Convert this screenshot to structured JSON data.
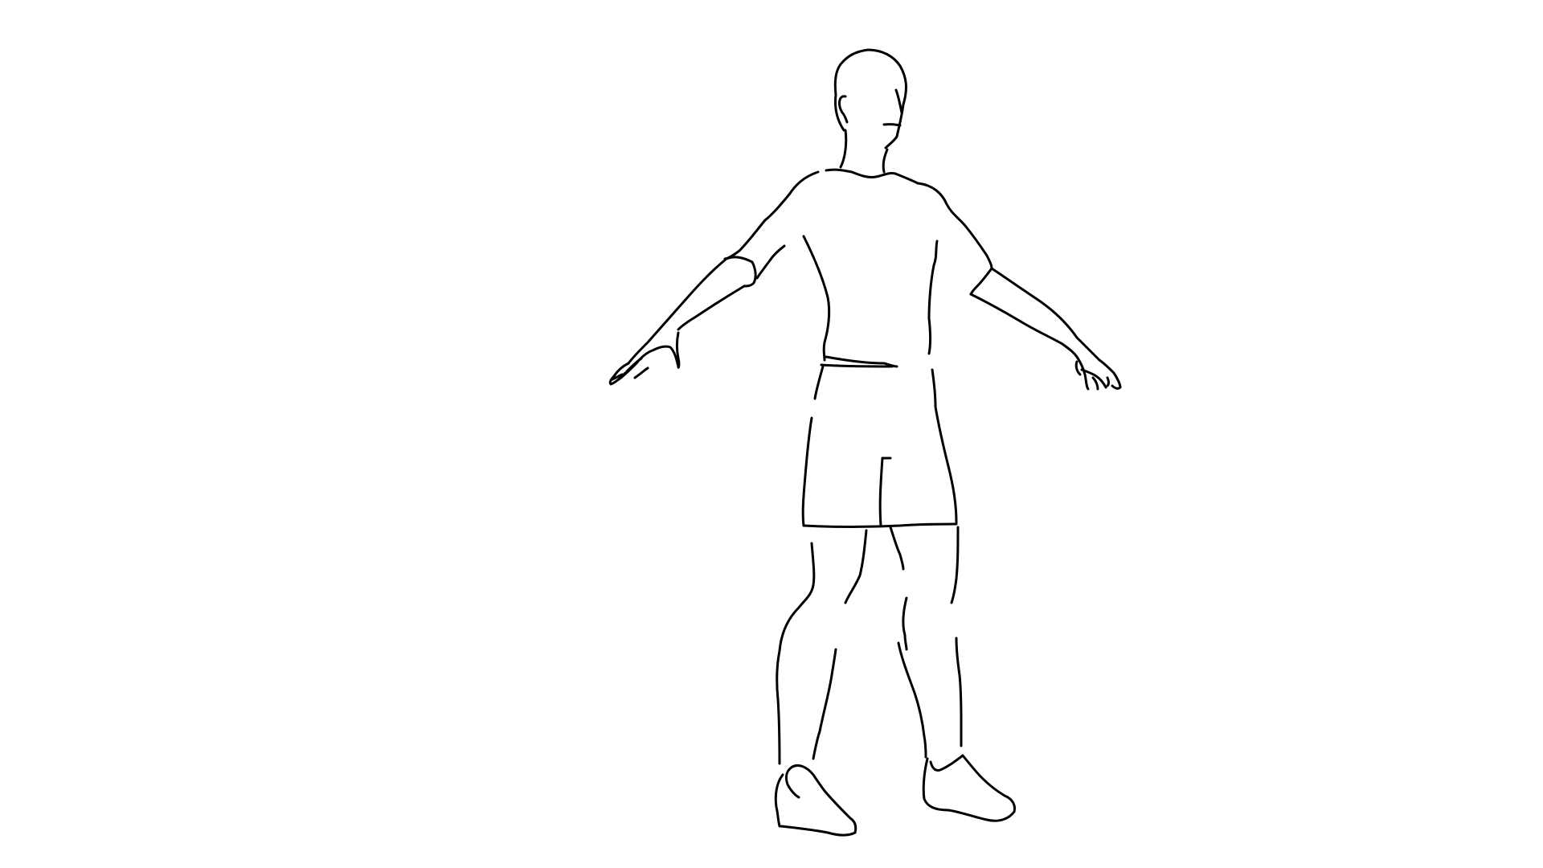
{
  "drawing": {
    "subject": "person-outline-standing-arms-out",
    "stroke_color": "#000000",
    "background_color": "#ffffff"
  }
}
